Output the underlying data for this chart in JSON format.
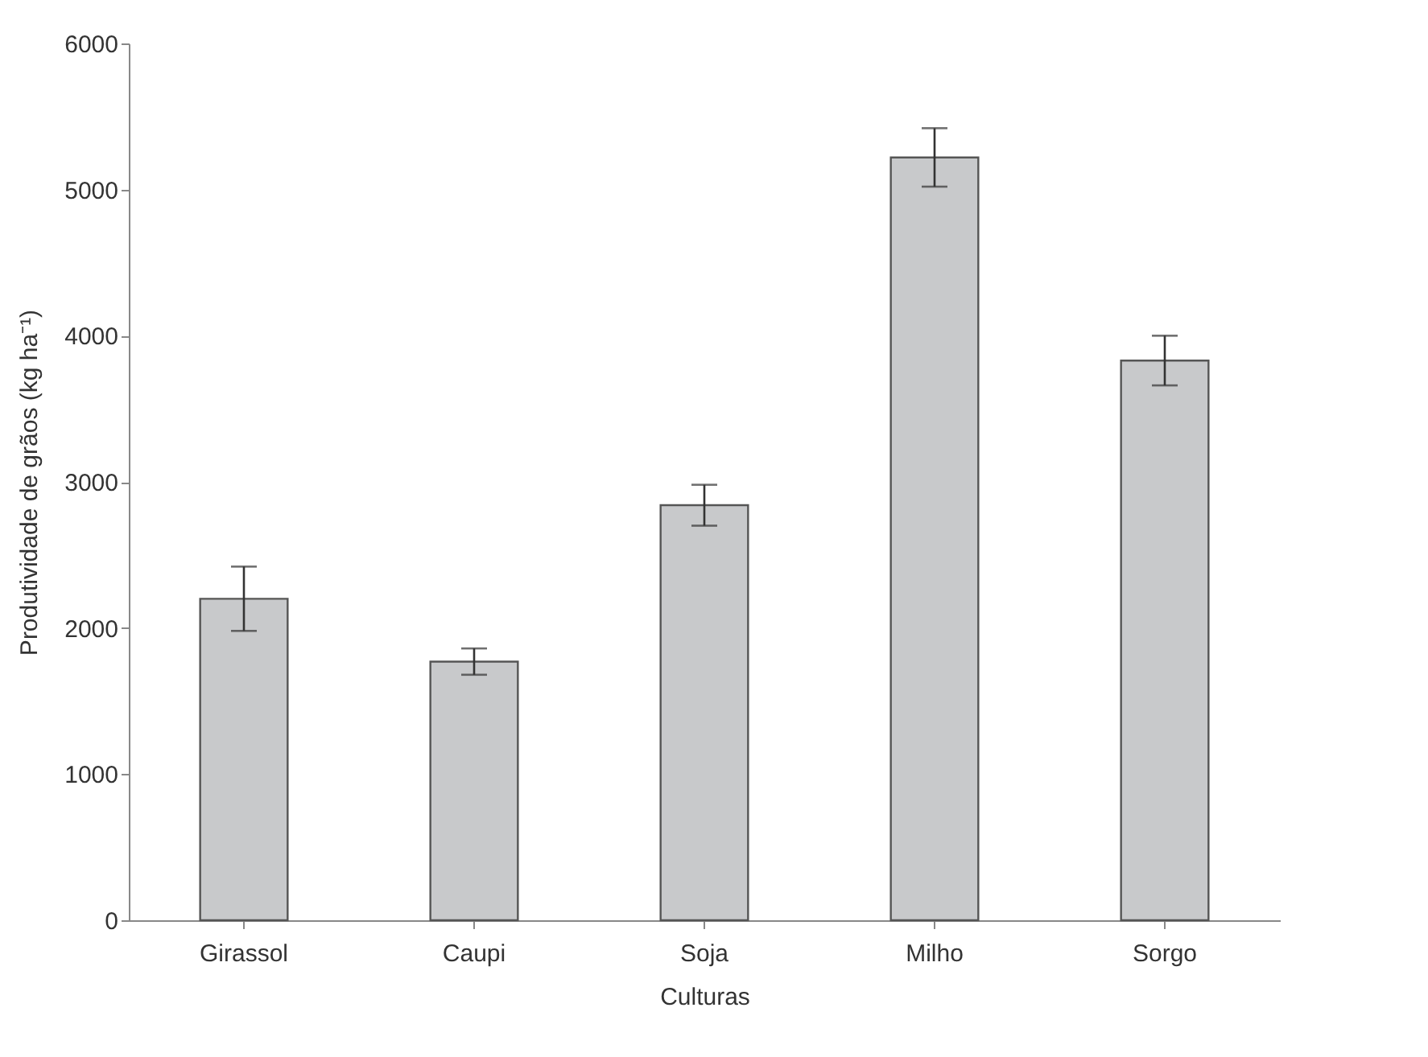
{
  "chart_data": {
    "type": "bar",
    "xlabel": "Culturas",
    "ylabel": "Produtividade de grãos (kg ha⁻¹)",
    "categories": [
      "Girassol",
      "Caupi",
      "Soja",
      "Milho",
      "Sorgo"
    ],
    "values": [
      2200,
      1770,
      2840,
      5220,
      3830
    ],
    "errors": [
      220,
      90,
      140,
      200,
      170
    ],
    "color": "#c8c9cb",
    "ylim": [
      0,
      6000
    ],
    "yticks": [
      0,
      1000,
      2000,
      3000,
      4000,
      5000,
      6000
    ],
    "grid": false
  }
}
